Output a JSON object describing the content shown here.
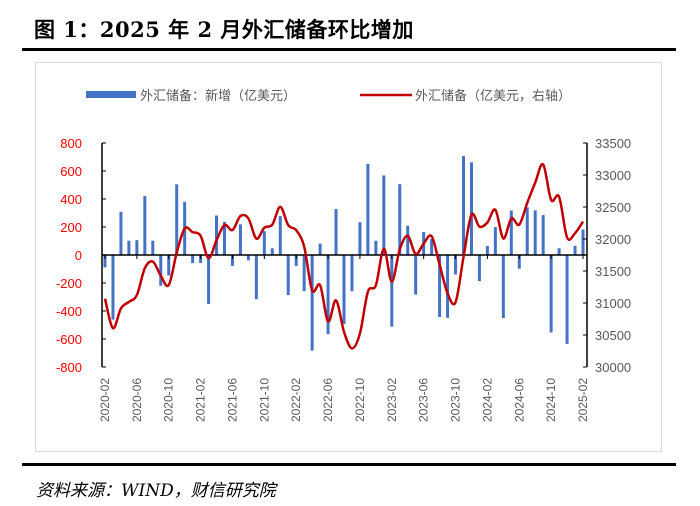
{
  "title": "图 1：2025 年 2 月外汇储备环比增加",
  "source": "资料来源：WIND，财信研究院",
  "chart_data": {
    "type": "bar+line",
    "legend_position": "top",
    "grid": false,
    "x_tick_labels": [
      "2020-02",
      "2020-06",
      "2020-10",
      "2021-02",
      "2021-06",
      "2021-10",
      "2022-02",
      "2022-06",
      "2022-10",
      "2023-02",
      "2023-06",
      "2023-10",
      "2024-02",
      "2024-06",
      "2024-10",
      "2025-02"
    ],
    "x_start": "2020-02",
    "x_end": "2025-02",
    "y_left": {
      "range": [
        -800,
        800
      ],
      "ticks": [
        800,
        600,
        400,
        200,
        0,
        -200,
        -400,
        -600,
        -800
      ],
      "color": "#ff0000"
    },
    "y_right": {
      "range": [
        30000,
        33500
      ],
      "ticks": [
        33500,
        33000,
        32500,
        32000,
        31500,
        31000,
        30500,
        30000
      ]
    },
    "series": [
      {
        "name": "外汇储备：新增（亿美元）",
        "type": "bar",
        "axis": "left",
        "color": "#4472c4",
        "values": [
          -88,
          -461,
          309,
          102,
          106,
          421,
          102,
          -220,
          -146,
          505,
          380,
          -58,
          -57,
          -350,
          282,
          236,
          -78,
          219,
          -38,
          -316,
          170,
          48,
          278,
          -286,
          -78,
          -258,
          -683,
          81,
          -565,
          328,
          -492,
          -259,
          234,
          651,
          102,
          568,
          -512,
          506,
          209,
          -283,
          164,
          114,
          -443,
          -449,
          -139,
          706,
          662,
          -187,
          65,
          199,
          -450,
          318,
          -98,
          340,
          319,
          285,
          -553,
          48,
          -635,
          66,
          182
        ]
      },
      {
        "name": "外汇储备（亿美元，右轴）",
        "type": "line",
        "axis": "right",
        "color": "#c00000",
        "values": [
          31067,
          30606,
          30915,
          31017,
          31123,
          31544,
          31646,
          31426,
          31280,
          31785,
          32165,
          32107,
          32050,
          31700,
          31982,
          32218,
          32140,
          32359,
          32321,
          32006,
          32176,
          32224,
          32502,
          32216,
          32138,
          31880,
          31197,
          31278,
          30713,
          31041,
          30549,
          30290,
          30524,
          31175,
          31277,
          31845,
          31333,
          31839,
          32048,
          31765,
          31929,
          32043,
          31600,
          31151,
          31012,
          31718,
          32380,
          32193,
          32258,
          32457,
          32008,
          32320,
          32224,
          32564,
          32880,
          33164,
          32611,
          32659,
          32024,
          32090,
          32272
        ]
      }
    ]
  }
}
